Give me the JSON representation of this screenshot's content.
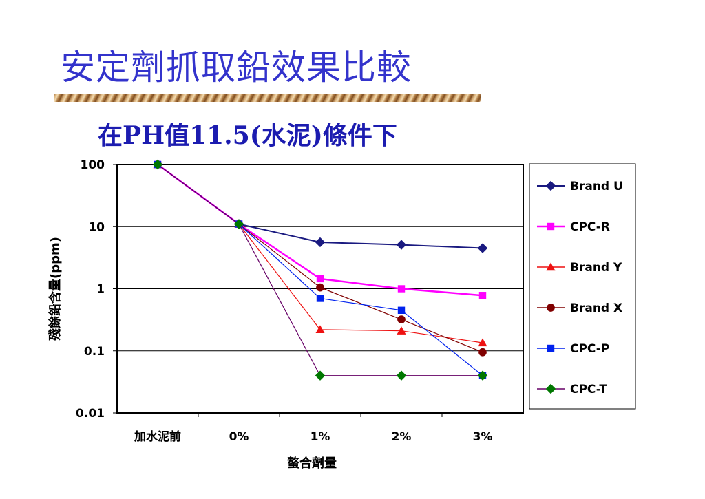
{
  "slide": {
    "title": "安定劑抓取鉛效果比較",
    "subtitle": "在PH值11.5(水泥)條件下",
    "accent_color": "#3333cc"
  },
  "chart_data": {
    "type": "line",
    "categories": [
      "加水泥前",
      "0%",
      "1%",
      "2%",
      "3%"
    ],
    "xlabel": "螯合劑量",
    "ylabel": "殘餘鉛含量(ppm)",
    "yscale": "log",
    "ylim": [
      0.01,
      100
    ],
    "yticks": [
      "100",
      "10",
      "1",
      "0.1",
      "0.01"
    ],
    "grid": true,
    "legend_position": "right",
    "series": [
      {
        "name": "Brand U",
        "color": "#1a1a80",
        "marker": "diamond",
        "width": 2,
        "values": [
          100,
          11,
          5.6,
          5.1,
          4.5
        ]
      },
      {
        "name": "CPC-R",
        "color": "#ff00ff",
        "marker": "square",
        "width": 2.5,
        "values": [
          100,
          11,
          1.45,
          1.0,
          0.78
        ]
      },
      {
        "name": "Brand Y",
        "color": "#ee1111",
        "marker": "triangle",
        "width": 1.2,
        "values": [
          100,
          11,
          0.22,
          0.21,
          0.135
        ]
      },
      {
        "name": "Brand X",
        "color": "#800000",
        "marker": "circle",
        "width": 1.2,
        "values": [
          100,
          11,
          1.05,
          0.32,
          0.095
        ]
      },
      {
        "name": "CPC-P",
        "color": "#0022ee",
        "marker": "square",
        "width": 1.2,
        "values": [
          100,
          11,
          0.7,
          0.45,
          0.04
        ]
      },
      {
        "name": "CPC-T",
        "color": "#660066",
        "marker": "diamond",
        "markerColor": "#007700",
        "width": 1.2,
        "values": [
          100,
          11,
          0.04,
          0.04,
          0.04
        ]
      }
    ]
  }
}
